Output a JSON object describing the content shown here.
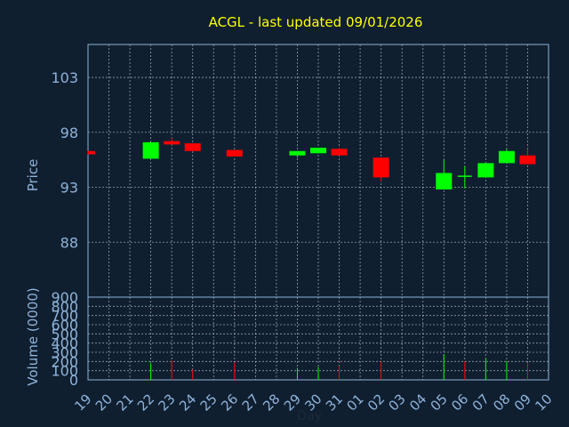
{
  "title": "ACGL - last updated 09/01/2026",
  "colors": {
    "background": "#0f1f30",
    "title": "#ffff00",
    "axis_text": "#8fb3d9",
    "frame": "#8fb3d9",
    "grid": "#c8d4e0",
    "up": "#00ff00",
    "down": "#ff0000"
  },
  "chart_data": [
    {
      "type": "candlestick",
      "ylabel": "Price",
      "ylim": [
        83.0,
        106.0
      ],
      "yticks": [
        88,
        93,
        98,
        103
      ],
      "grid": true,
      "categories": [
        "19",
        "20",
        "21",
        "22",
        "23",
        "24",
        "25",
        "26",
        "27",
        "28",
        "29",
        "30",
        "31",
        "01",
        "02",
        "03",
        "04",
        "05",
        "06",
        "07",
        "08",
        "09",
        "10"
      ],
      "candles": [
        {
          "day": "19",
          "open": 96.3,
          "close": 96.0,
          "high": 96.3,
          "low": 96.0
        },
        {
          "day": "22",
          "open": 95.6,
          "close": 97.1,
          "high": 97.1,
          "low": 95.6
        },
        {
          "day": "23",
          "open": 97.2,
          "close": 96.9,
          "high": 97.5,
          "low": 96.9
        },
        {
          "day": "24",
          "open": 97.0,
          "close": 96.3,
          "high": 97.0,
          "low": 96.3
        },
        {
          "day": "26",
          "open": 96.4,
          "close": 95.8,
          "high": 96.4,
          "low": 95.8
        },
        {
          "day": "29",
          "open": 95.9,
          "close": 96.3,
          "high": 96.3,
          "low": 95.7
        },
        {
          "day": "30",
          "open": 96.1,
          "close": 96.6,
          "high": 96.6,
          "low": 96.1
        },
        {
          "day": "31",
          "open": 96.5,
          "close": 95.9,
          "high": 96.6,
          "low": 95.9
        },
        {
          "day": "02",
          "open": 95.7,
          "close": 93.9,
          "high": 95.7,
          "low": 93.5
        },
        {
          "day": "05",
          "open": 92.8,
          "close": 94.3,
          "high": 95.5,
          "low": 92.8
        },
        {
          "day": "06",
          "open": 94.0,
          "close": 94.0,
          "high": 94.9,
          "low": 92.9
        },
        {
          "day": "07",
          "open": 93.9,
          "close": 95.2,
          "high": 95.2,
          "low": 93.9
        },
        {
          "day": "08",
          "open": 95.2,
          "close": 96.3,
          "high": 96.5,
          "low": 95.2
        },
        {
          "day": "09",
          "open": 95.9,
          "close": 95.1,
          "high": 96.5,
          "low": 95.1
        }
      ]
    },
    {
      "type": "bar",
      "xlabel": "Day",
      "ylabel": "Volume (0000)",
      "ylim": [
        0,
        900
      ],
      "yticks": [
        0,
        100,
        200,
        300,
        400,
        500,
        600,
        700,
        800,
        900
      ],
      "grid": true,
      "categories": [
        "19",
        "20",
        "21",
        "22",
        "23",
        "24",
        "25",
        "26",
        "27",
        "28",
        "29",
        "30",
        "31",
        "01",
        "02",
        "03",
        "04",
        "05",
        "06",
        "07",
        "08",
        "09",
        "10"
      ],
      "bars": [
        {
          "day": "22",
          "value": 180,
          "direction": "up"
        },
        {
          "day": "23",
          "value": 210,
          "direction": "down"
        },
        {
          "day": "24",
          "value": 110,
          "direction": "down"
        },
        {
          "day": "26",
          "value": 190,
          "direction": "down"
        },
        {
          "day": "29",
          "value": 130,
          "direction": "up"
        },
        {
          "day": "30",
          "value": 140,
          "direction": "up"
        },
        {
          "day": "31",
          "value": 150,
          "direction": "down"
        },
        {
          "day": "02",
          "value": 200,
          "direction": "down"
        },
        {
          "day": "05",
          "value": 280,
          "direction": "up"
        },
        {
          "day": "06",
          "value": 200,
          "direction": "down"
        },
        {
          "day": "07",
          "value": 230,
          "direction": "up"
        },
        {
          "day": "08",
          "value": 200,
          "direction": "up"
        },
        {
          "day": "09",
          "value": 180,
          "direction": "down"
        }
      ]
    }
  ]
}
